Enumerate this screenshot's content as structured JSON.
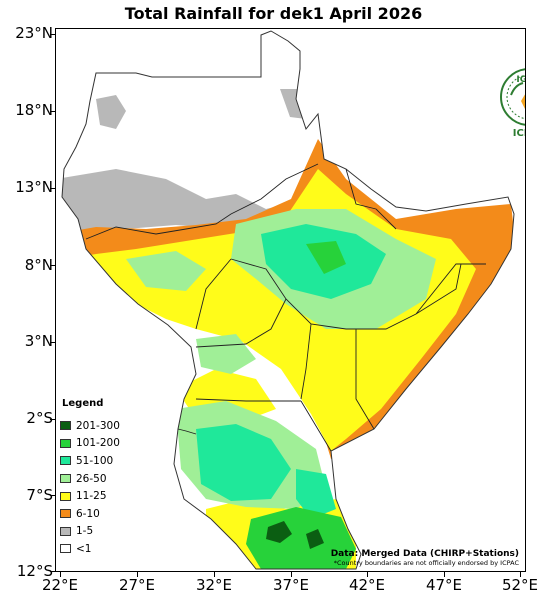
{
  "title": "Total Rainfall for dek1 April 2026",
  "axes": {
    "y_labels": [
      "23°N",
      "18°N",
      "13°N",
      "8°N",
      "3°N",
      "2°S",
      "7°S",
      "12°S"
    ],
    "x_labels": [
      "22°E",
      "27°E",
      "32°E",
      "37°E",
      "42°E",
      "47°E",
      "52°E"
    ]
  },
  "legend": {
    "title": "Legend",
    "items": [
      {
        "label": "201-300",
        "color": "#0b5e12"
      },
      {
        "label": "101-200",
        "color": "#27d23a"
      },
      {
        "label": "51-100",
        "color": "#1fe89a"
      },
      {
        "label": "26-50",
        "color": "#a0ef97"
      },
      {
        "label": "11-25",
        "color": "#fffc1a"
      },
      {
        "label": "6-10",
        "color": "#f38b1a"
      },
      {
        "label": "1-5",
        "color": "#b8b8b8"
      },
      {
        "label": "<1",
        "color": "#ffffff"
      }
    ]
  },
  "source": "Data: Merged Data (CHIRP+Stations)",
  "disclaimer": "*Country boundaries are not officially endorsed by ICPAC",
  "logo": {
    "text": "IGAD",
    "subtext": "ICPAC",
    "color": "#2e7d32"
  }
}
